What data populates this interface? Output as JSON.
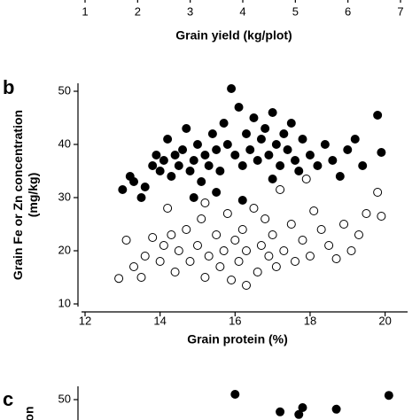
{
  "chart_data": [
    {
      "type": "scatter",
      "xlabel": "Grain yield (kg/plot)",
      "xlim": [
        1,
        7
      ],
      "xticks": [
        1,
        2,
        3,
        4,
        5,
        6,
        7
      ]
    },
    {
      "type": "scatter",
      "panel": "b",
      "xlabel": "Grain protein (%)",
      "ylabel": [
        "Grain Fe or Zn concentration",
        "(mg/kg)"
      ],
      "xlim": [
        12,
        20.6
      ],
      "xticks": [
        12,
        14,
        16,
        18,
        20
      ],
      "ylim": [
        10,
        51
      ],
      "yticks": [
        10,
        20,
        30,
        40,
        50
      ],
      "series": [
        {
          "marker": "filled",
          "color": "#000000",
          "x": [
            13.0,
            13.2,
            13.3,
            13.5,
            13.6,
            13.8,
            13.9,
            14.0,
            14.1,
            14.2,
            14.3,
            14.4,
            14.5,
            14.6,
            14.7,
            14.8,
            14.9,
            15.0,
            15.1,
            15.2,
            15.3,
            15.4,
            15.5,
            15.6,
            15.7,
            15.8,
            15.9,
            16.0,
            16.1,
            16.2,
            16.3,
            16.4,
            16.5,
            16.6,
            16.7,
            16.8,
            16.9,
            17.0,
            17.1,
            17.2,
            17.3,
            17.4,
            17.5,
            17.6,
            17.7,
            17.8,
            18.0,
            18.2,
            18.4,
            18.6,
            18.8,
            19.0,
            19.2,
            19.4,
            19.8,
            19.9,
            16.2,
            14.9,
            17.0,
            15.5
          ],
          "values": [
            31.5,
            34,
            33,
            30,
            32,
            36,
            38,
            35,
            37,
            41,
            34,
            38,
            36,
            39,
            43,
            35,
            37,
            40,
            33,
            38,
            36,
            42,
            39,
            35,
            44,
            40,
            50.5,
            38,
            47,
            36,
            42,
            39,
            45,
            37,
            41,
            43,
            38,
            46,
            40,
            36,
            42,
            39,
            44,
            37,
            35,
            41,
            38,
            36,
            40,
            37,
            34,
            39,
            41,
            36,
            45.5,
            38.5,
            29.5,
            30,
            33.5,
            31
          ]
        },
        {
          "marker": "open",
          "color": "#000000",
          "x": [
            12.9,
            13.1,
            13.3,
            13.5,
            13.6,
            13.8,
            14.0,
            14.1,
            14.2,
            14.4,
            14.5,
            14.7,
            14.8,
            15.0,
            15.1,
            15.2,
            15.3,
            15.5,
            15.6,
            15.7,
            15.8,
            15.9,
            16.0,
            16.1,
            16.2,
            16.3,
            16.5,
            16.6,
            16.7,
            16.8,
            16.9,
            17.0,
            17.1,
            17.2,
            17.3,
            17.5,
            17.6,
            17.8,
            17.9,
            18.0,
            18.1,
            18.3,
            18.5,
            18.7,
            18.9,
            19.1,
            19.3,
            19.5,
            19.8,
            19.9,
            15.2,
            16.3,
            14.3
          ],
          "values": [
            14.8,
            22,
            17,
            15,
            19,
            22.5,
            18,
            21,
            28,
            16,
            20,
            24,
            18,
            21,
            26,
            15,
            19,
            23,
            17,
            20,
            27,
            14.5,
            22,
            18,
            24,
            20,
            28,
            16,
            21,
            26,
            19,
            23,
            17,
            31.5,
            20,
            25,
            18,
            22,
            33.5,
            19,
            27.5,
            24,
            21,
            18.5,
            25,
            20,
            23,
            27,
            31,
            26.5,
            29,
            13.5,
            23
          ]
        }
      ]
    },
    {
      "type": "scatter",
      "panel": "c",
      "ylabel": [
        "on"
      ],
      "xlim": [
        12,
        20.6
      ],
      "ylim": [
        46,
        52
      ],
      "yticks": [
        50
      ],
      "series": [
        {
          "marker": "filled",
          "color": "#000000",
          "x": [
            16.0,
            17.2,
            17.7,
            18.7,
            20.1,
            17.8
          ],
          "values": [
            51,
            47.7,
            47.2,
            48.2,
            50.8,
            48.5
          ]
        }
      ]
    }
  ]
}
